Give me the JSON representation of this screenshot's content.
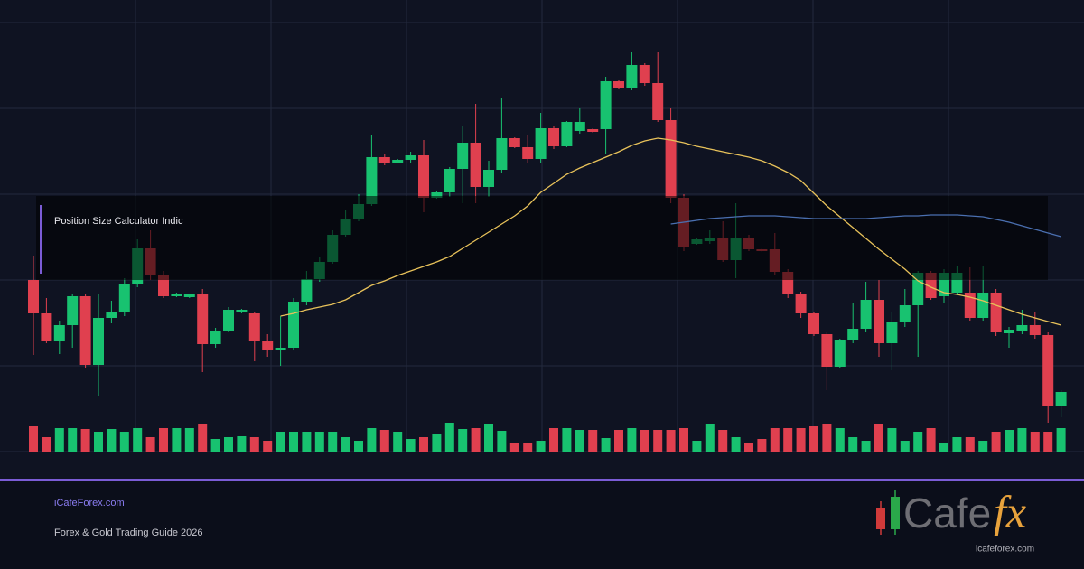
{
  "chart_data": {
    "type": "candlestick",
    "ylim": [
      0,
      500
    ],
    "up_color": "#18c270",
    "down_color": "#e0404f",
    "ma_color": "#e8c25a",
    "ma2_color": "#4a6fb0",
    "open": [
      190,
      153,
      122,
      140,
      172,
      96,
      148,
      155,
      186,
      225,
      195,
      172,
      171,
      174,
      119,
      134,
      154,
      153,
      122,
      112,
      115,
      166,
      191,
      210,
      240,
      258,
      274,
      326,
      320,
      323,
      328,
      281,
      287,
      313,
      342,
      293,
      312,
      347,
      337,
      324,
      358,
      338,
      355,
      357,
      357,
      410,
      403,
      428,
      408,
      367,
      281,
      230,
      233,
      237,
      212,
      237,
      224,
      224,
      199,
      174,
      153,
      130,
      94,
      123,
      136,
      168,
      120,
      144,
      162,
      198,
      172,
      176,
      176,
      148,
      176,
      131,
      134,
      140,
      129,
      50
    ],
    "high": [
      217,
      170,
      145,
      175,
      175,
      175,
      167,
      192,
      235,
      245,
      200,
      176,
      175,
      180,
      137,
      160,
      158,
      155,
      130,
      150,
      170,
      200,
      215,
      245,
      268,
      285,
      350,
      330,
      324,
      332,
      345,
      289,
      315,
      360,
      385,
      322,
      392,
      348,
      350,
      375,
      360,
      366,
      380,
      358,
      415,
      411,
      442,
      430,
      442,
      380,
      285,
      236,
      245,
      255,
      275,
      240,
      225,
      242,
      202,
      177,
      155,
      132,
      125,
      165,
      188,
      190,
      155,
      180,
      200,
      200,
      202,
      205,
      204,
      205,
      180,
      138,
      157,
      155,
      132,
      68
    ],
    "low": [
      107,
      120,
      108,
      115,
      92,
      62,
      142,
      150,
      182,
      190,
      170,
      171,
      170,
      88,
      115,
      132,
      153,
      100,
      105,
      95,
      112,
      162,
      188,
      208,
      238,
      255,
      272,
      317,
      319,
      320,
      265,
      280,
      282,
      275,
      275,
      282,
      308,
      336,
      320,
      320,
      335,
      337,
      352,
      353,
      330,
      402,
      400,
      405,
      365,
      275,
      222,
      229,
      230,
      210,
      192,
      222,
      221,
      195,
      170,
      148,
      128,
      68,
      92,
      120,
      132,
      105,
      90,
      138,
      105,
      168,
      165,
      173,
      145,
      145,
      128,
      115,
      130,
      125,
      32,
      38
    ],
    "close": [
      153,
      122,
      140,
      172,
      96,
      148,
      155,
      186,
      225,
      195,
      172,
      175,
      174,
      119,
      134,
      157,
      157,
      122,
      112,
      115,
      166,
      191,
      210,
      240,
      258,
      274,
      326,
      320,
      323,
      328,
      281,
      287,
      313,
      342,
      293,
      312,
      347,
      337,
      324,
      358,
      338,
      365,
      365,
      354,
      410,
      403,
      428,
      408,
      367,
      281,
      227,
      235,
      237,
      212,
      237,
      224,
      222,
      199,
      174,
      153,
      130,
      94,
      123,
      136,
      168,
      120,
      144,
      162,
      198,
      170,
      198,
      198,
      148,
      176,
      132,
      135,
      140,
      129,
      50,
      66
    ],
    "volume": [
      28,
      16,
      26,
      26,
      25,
      22,
      25,
      22,
      26,
      16,
      26,
      26,
      26,
      30,
      14,
      16,
      17,
      16,
      12,
      22,
      22,
      22,
      22,
      22,
      16,
      12,
      26,
      24,
      22,
      14,
      16,
      20,
      32,
      25,
      26,
      30,
      23,
      10,
      10,
      12,
      26,
      26,
      24,
      24,
      15,
      24,
      26,
      24,
      24,
      24,
      26,
      12,
      30,
      24,
      16,
      10,
      14,
      26,
      26,
      26,
      28,
      30,
      26,
      16,
      12,
      30,
      26,
      12,
      22,
      26,
      10,
      16,
      16,
      12,
      22,
      24,
      26,
      22,
      22,
      26
    ],
    "ma": [
      null,
      null,
      null,
      null,
      null,
      null,
      null,
      null,
      null,
      null,
      null,
      null,
      null,
      null,
      null,
      null,
      null,
      null,
      null,
      150,
      153,
      157,
      160,
      163,
      168,
      176,
      184,
      189,
      195,
      200,
      205,
      210,
      216,
      225,
      234,
      243,
      252,
      261,
      272,
      287,
      297,
      307,
      314,
      320,
      326,
      332,
      339,
      344,
      347,
      345,
      342,
      338,
      335,
      332,
      329,
      326,
      322,
      316,
      309,
      300,
      286,
      272,
      260,
      248,
      236,
      224,
      213,
      202,
      189,
      182,
      176,
      174,
      171,
      167,
      162,
      157,
      152,
      148,
      144,
      140
    ],
    "ma2": [
      null,
      null,
      null,
      null,
      null,
      null,
      null,
      null,
      null,
      null,
      null,
      null,
      null,
      null,
      null,
      null,
      null,
      null,
      null,
      null,
      null,
      null,
      null,
      null,
      null,
      null,
      null,
      null,
      null,
      null,
      null,
      null,
      null,
      null,
      null,
      null,
      null,
      null,
      null,
      null,
      null,
      null,
      null,
      null,
      null,
      null,
      null,
      null,
      null,
      252,
      254,
      256,
      258,
      259,
      260,
      261,
      261,
      261,
      260,
      259,
      258,
      258,
      258,
      258,
      258,
      259,
      260,
      261,
      261,
      262,
      262,
      262,
      261,
      260,
      257,
      254,
      250,
      246,
      242,
      238
    ]
  },
  "panel": {
    "title": "Position Size Calculator Indic"
  },
  "footer": {
    "site": "iCafeForex.com",
    "subtitle": "Forex & Gold Trading Guide 2026"
  },
  "logo": {
    "word": "Cafe",
    "accent": "fx",
    "url": "icafeforex.com"
  }
}
